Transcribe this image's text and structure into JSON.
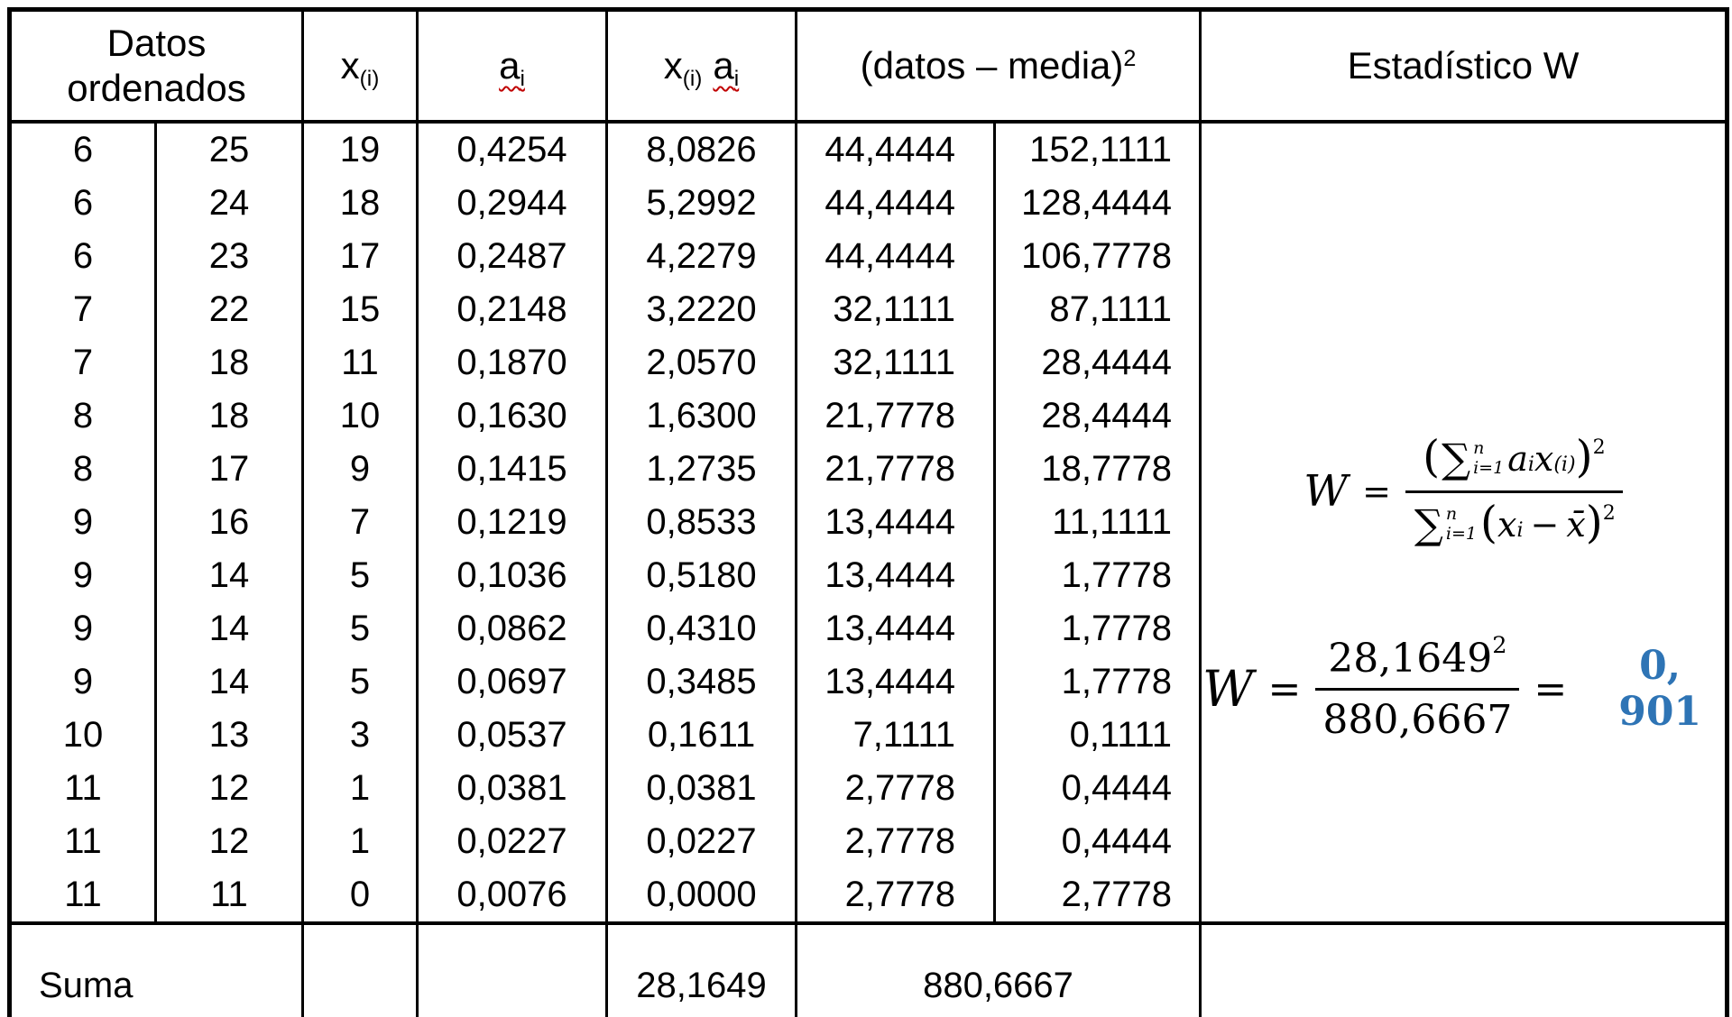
{
  "header": {
    "datos_line1": "Datos",
    "datos_line2": "ordenados",
    "x_base": "x",
    "x_sub": "(i)",
    "a_base": "a",
    "a_sub": "i",
    "xa_x_base": "x",
    "xa_x_sub": "(i)",
    "xa_a_base": "a",
    "xa_a_sub": "i",
    "datos_media_base": "(datos – media)",
    "datos_media_exp": "2",
    "estadistico": "Estadístico W"
  },
  "rows": [
    [
      "6",
      "25",
      "19",
      "0,4254",
      "8,0826",
      "44,4444",
      "152,1111"
    ],
    [
      "6",
      "24",
      "18",
      "0,2944",
      "5,2992",
      "44,4444",
      "128,4444"
    ],
    [
      "6",
      "23",
      "17",
      "0,2487",
      "4,2279",
      "44,4444",
      "106,7778"
    ],
    [
      "7",
      "22",
      "15",
      "0,2148",
      "3,2220",
      "32,1111",
      "87,1111"
    ],
    [
      "7",
      "18",
      "11",
      "0,1870",
      "2,0570",
      "32,1111",
      "28,4444"
    ],
    [
      "8",
      "18",
      "10",
      "0,1630",
      "1,6300",
      "21,7778",
      "28,4444"
    ],
    [
      "8",
      "17",
      "9",
      "0,1415",
      "1,2735",
      "21,7778",
      "18,7778"
    ],
    [
      "9",
      "16",
      "7",
      "0,1219",
      "0,8533",
      "13,4444",
      "11,1111"
    ],
    [
      "9",
      "14",
      "5",
      "0,1036",
      "0,5180",
      "13,4444",
      "1,7778"
    ],
    [
      "9",
      "14",
      "5",
      "0,0862",
      "0,4310",
      "13,4444",
      "1,7778"
    ],
    [
      "9",
      "14",
      "5",
      "0,0697",
      "0,3485",
      "13,4444",
      "1,7778"
    ],
    [
      "10",
      "13",
      "3",
      "0,0537",
      "0,1611",
      "7,1111",
      "0,1111"
    ],
    [
      "11",
      "12",
      "1",
      "0,0381",
      "0,0381",
      "2,7778",
      "0,4444"
    ],
    [
      "11",
      "12",
      "1",
      "0,0227",
      "0,0227",
      "2,7778",
      "0,4444"
    ],
    [
      "11",
      "11",
      "0",
      "0,0076",
      "0,0000",
      "2,7778",
      "2,7778"
    ]
  ],
  "suma": {
    "label": "Suma",
    "sum_xa": "28,1649",
    "sum_dm": "880,6667"
  },
  "formulas": {
    "general": {
      "lhs": "W",
      "eq": "=",
      "num_open": "(",
      "num_sigma": "∑",
      "num_sup": "n",
      "num_sub": "i=1",
      "num_a": "a",
      "num_a_sub": "i",
      "num_x": "x",
      "num_x_sub": "(i)",
      "num_close": ")",
      "num_exp": "2",
      "den_sigma": "∑",
      "den_sup": "n",
      "den_sub": "i=1",
      "den_open": "(",
      "den_x": "x",
      "den_x_sub": "i",
      "den_minus": "−",
      "den_xbar": "x̄",
      "den_close": ")",
      "den_exp": "2"
    },
    "numeric": {
      "lhs": "W",
      "eq": "=",
      "num_base": "28,1649",
      "num_exp": "2",
      "den": "880,6667",
      "eq2": "=",
      "result": "0, 901"
    }
  },
  "colors": {
    "result_blue": "#2e74b5",
    "squiggle_red": "#c00000",
    "border": "#000000"
  }
}
